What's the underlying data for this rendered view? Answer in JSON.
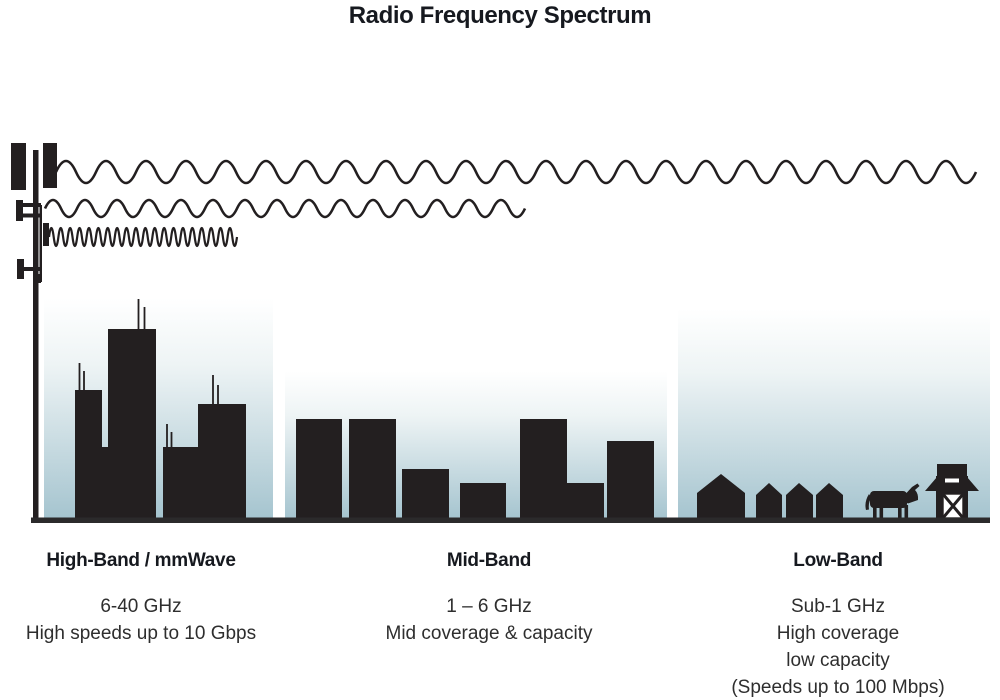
{
  "title": "Radio Frequency Spectrum",
  "bands": [
    {
      "name": "High-Band / mmWave",
      "scene": "city-skyline",
      "wave": "short-wavelength",
      "lines": [
        "6-40 GHz",
        "High speeds up to 10 Gbps"
      ]
    },
    {
      "name": "Mid-Band",
      "scene": "town-skyline",
      "wave": "medium-wavelength",
      "lines": [
        "1 – 6 GHz",
        "Mid coverage & capacity"
      ]
    },
    {
      "name": "Low-Band",
      "scene": "rural-farm",
      "wave": "long-wavelength",
      "lines": [
        "Sub-1 GHz",
        "High coverage",
        "low capacity",
        "(Speeds up to 100 Mbps)"
      ]
    }
  ],
  "colors": {
    "silhouette": "#231f20",
    "sky_top": "#ffffff",
    "sky_bottom": "#a5c4cf",
    "ground": "#2b2a2b",
    "heading_text": "#16191f",
    "body_text": "#2e2e2e"
  }
}
